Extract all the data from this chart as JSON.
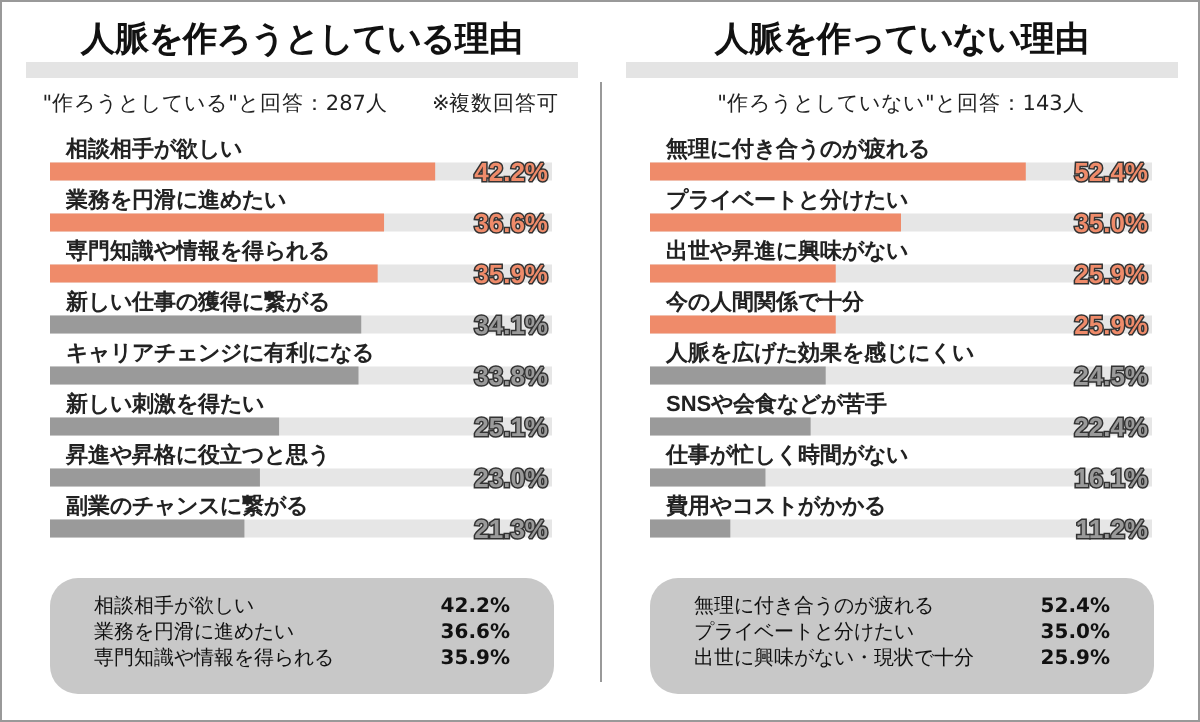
{
  "chart_data": [
    {
      "type": "bar",
      "orientation": "horizontal",
      "title": "人脈を作ろうとしている理由",
      "subtitle": "\"作ろうとしている\"と回答：287人　　※複数回答可",
      "categories": [
        "相談相手が欲しい",
        "業務を円滑に進めたい",
        "専門知識や情報を得られる",
        "新しい仕事の獲得に繋がる",
        "キャリアチェンジに有利になる",
        "新しい刺激を得たい",
        "昇進や昇格に役立つと思う",
        "副業のチャンスに繋がる"
      ],
      "values": [
        42.2,
        36.6,
        35.9,
        34.1,
        33.8,
        25.1,
        23.0,
        21.3
      ],
      "colors": [
        "#ef8b6a",
        "#ef8b6a",
        "#ef8b6a",
        "#9a9a9a",
        "#9a9a9a",
        "#9a9a9a",
        "#9a9a9a",
        "#9a9a9a"
      ],
      "value_labels": [
        "42.2%",
        "36.6%",
        "35.9%",
        "34.1%",
        "33.8%",
        "25.1%",
        "23.0%",
        "21.3%"
      ],
      "xlim": [
        0,
        55
      ],
      "tick_labels": "y",
      "annotations": [
        "相談相手が欲しい",
        "42.2%",
        "業務を円滑に進めたい",
        "36.6%",
        "専門知識や情報を得られる",
        "35.9%"
      ]
    },
    {
      "type": "bar",
      "orientation": "horizontal",
      "title": "人脈を作っていない理由",
      "subtitle": "\"作ろうとしていない\"と回答：143人",
      "categories": [
        "無理に付き合うのが疲れる",
        "プライベートと分けたい",
        "出世や昇進に興味がない",
        "今の人間関係で十分",
        "人脈を広げた効果を感じにくい",
        "SNSや会食などが苦手",
        "仕事が忙しく時間がない",
        "費用やコストがかかる"
      ],
      "values": [
        52.4,
        35.0,
        25.9,
        25.9,
        24.5,
        22.4,
        16.1,
        11.2
      ],
      "colors": [
        "#ef8b6a",
        "#ef8b6a",
        "#ef8b6a",
        "#ef8b6a",
        "#9a9a9a",
        "#9a9a9a",
        "#9a9a9a",
        "#9a9a9a"
      ],
      "value_labels": [
        "52.4%",
        "35.0%",
        "25.9%",
        "25.9%",
        "24.5%",
        "22.4%",
        "16.1%",
        "11.2%"
      ],
      "xlim": [
        0,
        70
      ],
      "tick_labels": "y",
      "annotations": [
        "無理に付き合うのが疲れる",
        "52.4%",
        "プライベートと分けたい",
        "35.0%",
        "出世に興味がない・現状で十分",
        "25.9%"
      ]
    }
  ]
}
